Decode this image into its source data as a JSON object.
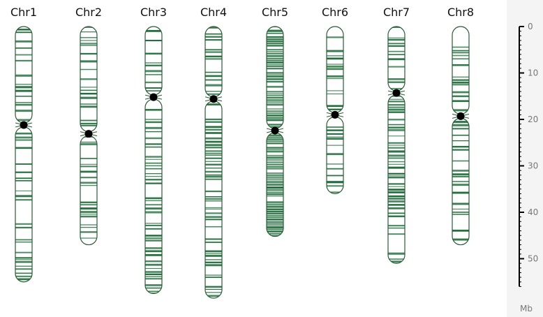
{
  "chromosomes": [
    {
      "name": "Chr1",
      "length": 55,
      "centromere": 21.2
    },
    {
      "name": "Chr2",
      "length": 47,
      "centromere": 23.1
    },
    {
      "name": "Chr3",
      "length": 57.5,
      "centromere": 15.2
    },
    {
      "name": "Chr4",
      "length": 58.5,
      "centromere": 15.6
    },
    {
      "name": "Chr5",
      "length": 45.2,
      "centromere": 22.4
    },
    {
      "name": "Chr6",
      "length": 36,
      "centromere": 19.0
    },
    {
      "name": "Chr7",
      "length": 51,
      "centromere": 14.3
    },
    {
      "name": "Chr8",
      "length": 47,
      "centromere": 19.3
    }
  ],
  "axis": {
    "unit": "Mb",
    "ticks": [
      "0",
      "10",
      "20",
      "30",
      "40",
      "50"
    ],
    "max": 56
  },
  "colors": {
    "band": "#1f6b3a",
    "outline": "#2a5a35",
    "centromere": "#000000",
    "axis_panel": "#f4f4f4"
  }
}
